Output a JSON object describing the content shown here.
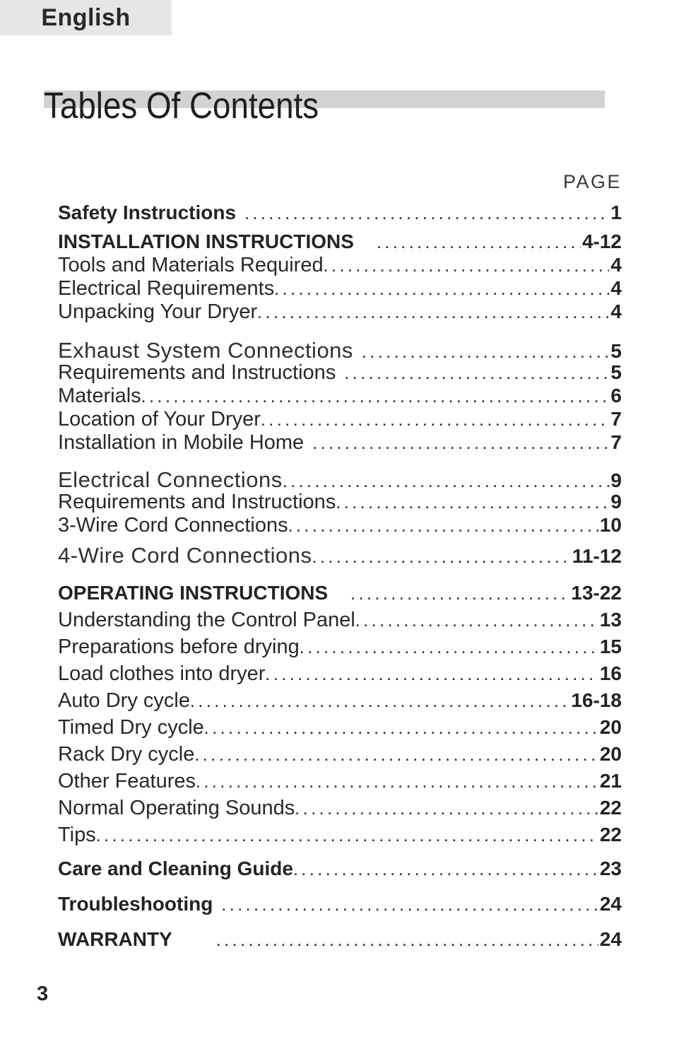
{
  "page": {
    "language_tab": "English",
    "title": "Tables Of Contents",
    "page_column_label": "PAGE",
    "footer_page_number": "3"
  },
  "colors": {
    "language_tab_bg": "#e6e6e6",
    "title_bar_bg": "#d2d2d2",
    "text": "#262223",
    "page_bg": "#ffffff"
  },
  "toc": {
    "groups": [
      {
        "entries": [
          {
            "label": "Safety Instructions",
            "page": "1",
            "style": "bold",
            "gap": "small"
          },
          {
            "label": "INSTALLATION INSTRUCTIONS",
            "page": "4-12",
            "style": "bold",
            "gap": "large"
          },
          {
            "label": "Tools and Materials Required",
            "page": "4",
            "style": "normal",
            "gap": "none"
          },
          {
            "label": "Electrical Requirements",
            "page": "4",
            "style": "normal",
            "gap": "none"
          },
          {
            "label": "Unpacking Your Dryer",
            "page": "4",
            "style": "normal",
            "gap": "none"
          }
        ]
      },
      {
        "entries": [
          {
            "label": "Exhaust System Connections",
            "page": "5",
            "style": "section",
            "gap": "small"
          },
          {
            "label": "Requirements and Instructions",
            "page": "5",
            "style": "normal",
            "gap": "small"
          },
          {
            "label": "Materials",
            "page": "6",
            "style": "normal",
            "gap": "none"
          },
          {
            "label": "Location of Your Dryer",
            "page": "7",
            "style": "normal",
            "gap": "none"
          },
          {
            "label": "Installation in Mobile Home",
            "page": "7",
            "style": "normal",
            "gap": "small"
          }
        ]
      },
      {
        "entries": [
          {
            "label": "Electrical Connections",
            "page": "9",
            "style": "section",
            "gap": "none"
          },
          {
            "label": "Requirements and Instructions",
            "page": "9",
            "style": "normal",
            "gap": "none"
          },
          {
            "label": "3-Wire Cord Connections",
            "page": "10",
            "style": "normal",
            "gap": "none"
          }
        ]
      },
      {
        "entries": [
          {
            "label": "4-Wire Cord Connections",
            "page": "11-12",
            "style": "section",
            "gap": "none"
          }
        ]
      },
      {
        "entries": [
          {
            "label": "OPERATING INSTRUCTIONS",
            "page": "13-22",
            "style": "bold",
            "gap": "large"
          },
          {
            "label": "Understanding the Control Panel",
            "page": "13",
            "style": "normal",
            "gap": "none"
          },
          {
            "label": "Preparations before drying",
            "page": "15",
            "style": "normal",
            "gap": "none"
          },
          {
            "label": "Load clothes into dryer",
            "page": "16",
            "style": "normal",
            "gap": "none"
          },
          {
            "label": "Auto Dry cycle",
            "page": "16-18",
            "style": "normal",
            "gap": "none"
          },
          {
            "label": "Timed Dry cycle",
            "page": "20",
            "style": "normal",
            "gap": "none"
          },
          {
            "label": "Rack Dry cycle",
            "page": "20",
            "style": "normal",
            "gap": "none"
          },
          {
            "label": "Other Features",
            "page": "21",
            "style": "normal",
            "gap": "none"
          },
          {
            "label": "Normal Operating Sounds",
            "page": "22",
            "style": "normal",
            "gap": "none"
          },
          {
            "label": "Tips",
            "page": "22",
            "style": "normal",
            "gap": "none"
          }
        ]
      },
      {
        "entries": [
          {
            "label": "Care and Cleaning Guide",
            "page": "23",
            "style": "bold",
            "gap": "none"
          },
          {
            "label": "Troubleshooting",
            "page": "24",
            "style": "bold",
            "gap": "small"
          },
          {
            "label": "WARRANTY",
            "page": "24",
            "style": "bold",
            "gap": "xlarge"
          }
        ]
      }
    ]
  }
}
